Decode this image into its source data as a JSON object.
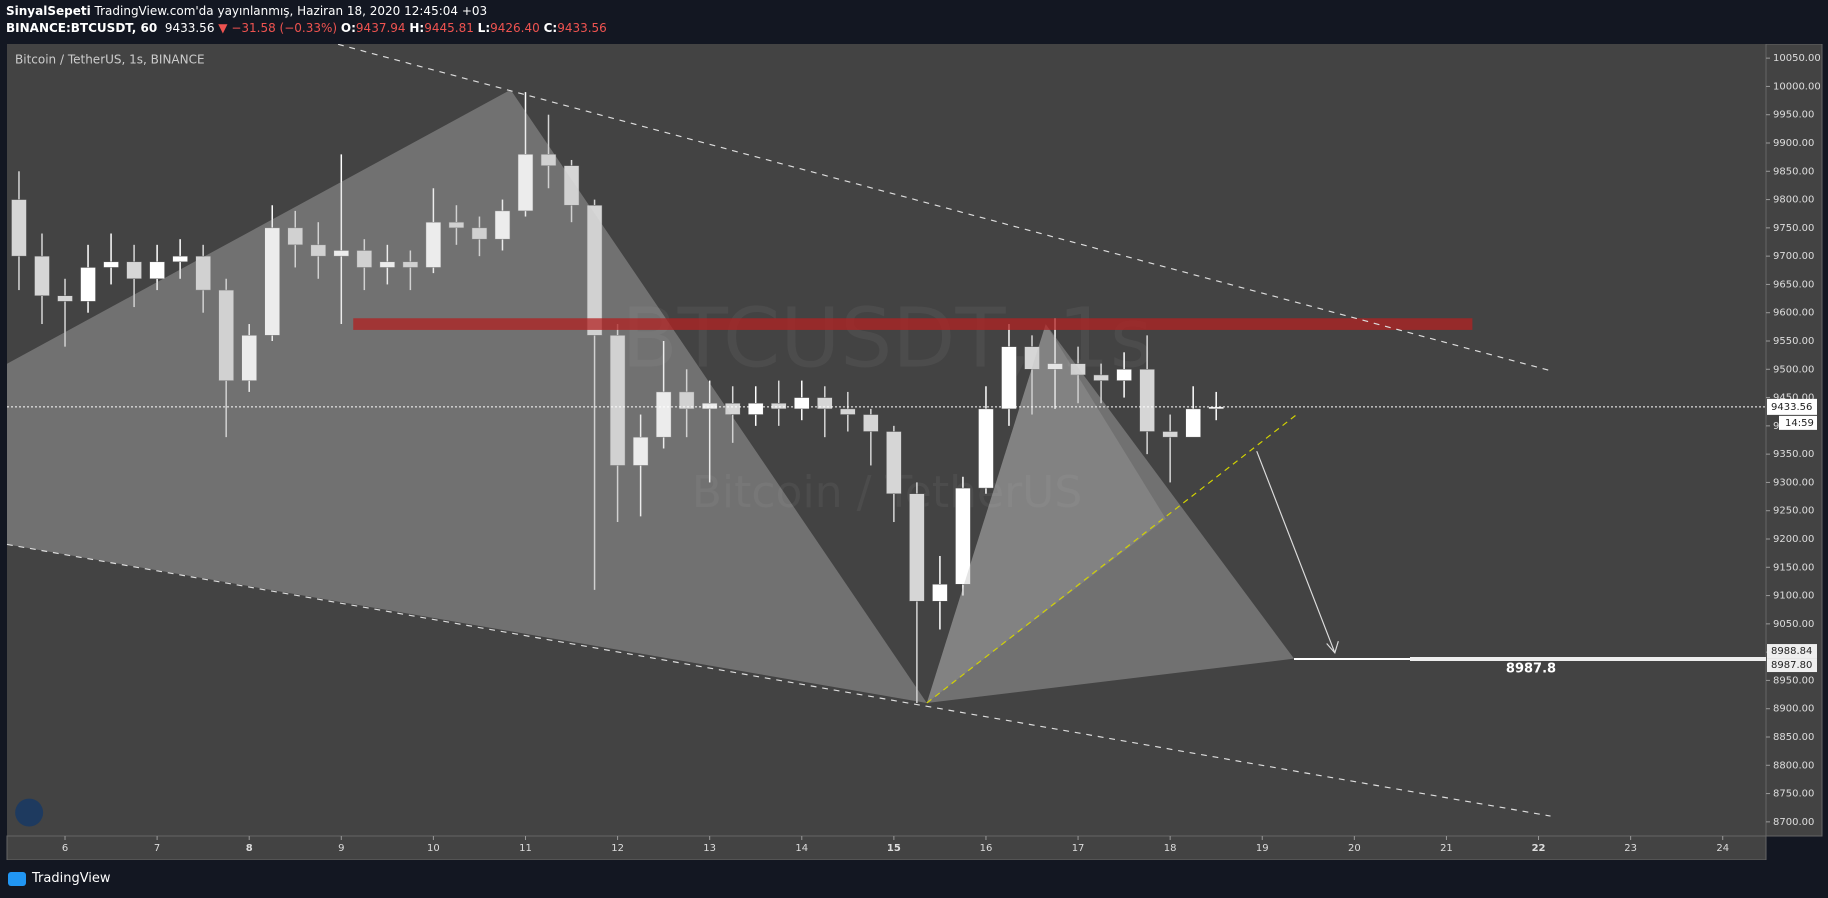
{
  "header": {
    "author": "SinyalSepeti",
    "published": "TradingView.com'da yayınlanmış, Haziran 18, 2020 12:45:04 +03",
    "symbol": "BINANCE:BTCUSDT, 60",
    "last": "9433.56",
    "change": "▼ −31.58 (−0.33%)",
    "ohlc": [
      {
        "label": "O:",
        "value": "9437.94"
      },
      {
        "label": "H:",
        "value": "9445.81"
      },
      {
        "label": "L:",
        "value": "9426.40"
      },
      {
        "label": "C:",
        "value": "9433.56"
      }
    ]
  },
  "footer": {
    "brand": "TradingView"
  },
  "chart_data": {
    "type": "candlestick",
    "title": "Bitcoin / TetherUS, 1s, BINANCE",
    "watermark": [
      "BTCUSDT, 1s",
      "Bitcoin / TetherUS"
    ],
    "up_color": "#ffffff",
    "down_color": "#d6d6d6",
    "x": [
      5.5,
      5.75,
      6,
      6.25,
      6.5,
      6.75,
      7,
      7.25,
      7.5,
      7.75,
      8,
      8.25,
      8.5,
      8.75,
      9,
      9.25,
      9.5,
      9.75,
      10,
      10.25,
      10.5,
      10.75,
      11,
      11.25,
      11.5,
      11.75,
      12,
      12.25,
      12.5,
      12.75,
      13,
      13.25,
      13.5,
      13.75,
      14,
      14.25,
      14.5,
      14.75,
      15,
      15.25,
      15.5,
      15.75,
      16,
      16.25,
      16.5,
      16.75,
      17,
      17.25,
      17.5,
      17.75,
      18,
      18.25,
      18.5
    ],
    "open": [
      9800,
      9700,
      9630,
      9620,
      9680,
      9690,
      9660,
      9690,
      9700,
      9640,
      9480,
      9560,
      9750,
      9720,
      9700,
      9710,
      9680,
      9690,
      9680,
      9760,
      9750,
      9730,
      9780,
      9880,
      9860,
      9790,
      9560,
      9330,
      9380,
      9460,
      9430,
      9440,
      9420,
      9440,
      9430,
      9450,
      9430,
      9420,
      9390,
      9280,
      9090,
      9120,
      9290,
      9430,
      9540,
      9500,
      9510,
      9490,
      9480,
      9500,
      9390,
      9380,
      9430
    ],
    "high": [
      9850,
      9740,
      9660,
      9720,
      9740,
      9720,
      9720,
      9730,
      9720,
      9660,
      9580,
      9790,
      9780,
      9760,
      9880,
      9730,
      9720,
      9710,
      9820,
      9790,
      9770,
      9800,
      9990,
      9950,
      9870,
      9800,
      9580,
      9420,
      9550,
      9500,
      9480,
      9470,
      9470,
      9480,
      9480,
      9470,
      9460,
      9430,
      9400,
      9300,
      9170,
      9310,
      9470,
      9580,
      9560,
      9590,
      9540,
      9510,
      9530,
      9560,
      9420,
      9470,
      9460
    ],
    "low": [
      9640,
      9580,
      9540,
      9600,
      9650,
      9610,
      9640,
      9660,
      9600,
      9380,
      9460,
      9550,
      9680,
      9660,
      9580,
      9640,
      9650,
      9640,
      9670,
      9720,
      9700,
      9710,
      9770,
      9820,
      9760,
      9110,
      9230,
      9240,
      9360,
      9380,
      9300,
      9370,
      9400,
      9400,
      9410,
      9380,
      9390,
      9330,
      9230,
      8910,
      9040,
      9100,
      9280,
      9400,
      9420,
      9430,
      9440,
      9440,
      9450,
      9350,
      9300,
      9390,
      9410
    ],
    "close": [
      9700,
      9630,
      9620,
      9680,
      9690,
      9660,
      9690,
      9700,
      9640,
      9480,
      9560,
      9750,
      9720,
      9700,
      9710,
      9680,
      9690,
      9680,
      9760,
      9750,
      9730,
      9780,
      9880,
      9860,
      9790,
      9560,
      9330,
      9380,
      9460,
      9430,
      9440,
      9420,
      9440,
      9430,
      9450,
      9430,
      9420,
      9390,
      9280,
      9090,
      9120,
      9290,
      9430,
      9540,
      9500,
      9510,
      9490,
      9480,
      9500,
      9390,
      9380,
      9430,
      9433.56
    ],
    "xlim": [
      5.37,
      24.47
    ],
    "ylim": [
      8675,
      10075
    ],
    "xticks": [
      6,
      7,
      8,
      9,
      10,
      11,
      12,
      13,
      14,
      15,
      16,
      17,
      18,
      19,
      20,
      21,
      22,
      23,
      24
    ],
    "bold_xticks": [
      8,
      15,
      22
    ],
    "yticks": [
      {
        "value": 8700,
        "label": "8700.00"
      },
      {
        "value": 8750,
        "label": "8750.00"
      },
      {
        "value": 8800,
        "label": "8800.00"
      },
      {
        "value": 8850,
        "label": "8850.00"
      },
      {
        "value": 8900,
        "label": "8900.00"
      },
      {
        "value": 8950,
        "label": "8950.00"
      },
      {
        "value": 9000,
        "label": "9000.00"
      },
      {
        "value": 9050,
        "label": "9050.00"
      },
      {
        "value": 9100,
        "label": "9100.00"
      },
      {
        "value": 9150,
        "label": "9150.00"
      },
      {
        "value": 9200,
        "label": "9200.00"
      },
      {
        "value": 9250,
        "label": "9250.00"
      },
      {
        "value": 9300,
        "label": "9300.00"
      },
      {
        "value": 9350,
        "label": "9350.00"
      },
      {
        "value": 9400,
        "label": "9400.00"
      },
      {
        "value": 9450,
        "label": "9450.00"
      },
      {
        "value": 9500,
        "label": "9500.00"
      },
      {
        "value": 9550,
        "label": "9550.00"
      },
      {
        "value": 9600,
        "label": "9600.00"
      },
      {
        "value": 9650,
        "label": "9650.00"
      },
      {
        "value": 9700,
        "label": "9700.00"
      },
      {
        "value": 9750,
        "label": "9750.00"
      },
      {
        "value": 9800,
        "label": "9800.00"
      },
      {
        "value": 9850,
        "label": "9850.00"
      },
      {
        "value": 9900,
        "label": "9900.00"
      },
      {
        "value": 9950,
        "label": "9950.00"
      },
      {
        "value": 10000,
        "label": "10000.00"
      },
      {
        "value": 10050,
        "label": "10050.00"
      }
    ],
    "target": 8987.8,
    "countdown": "14:59",
    "axis_tags": [
      "8988.84",
      "8987.80"
    ]
  }
}
